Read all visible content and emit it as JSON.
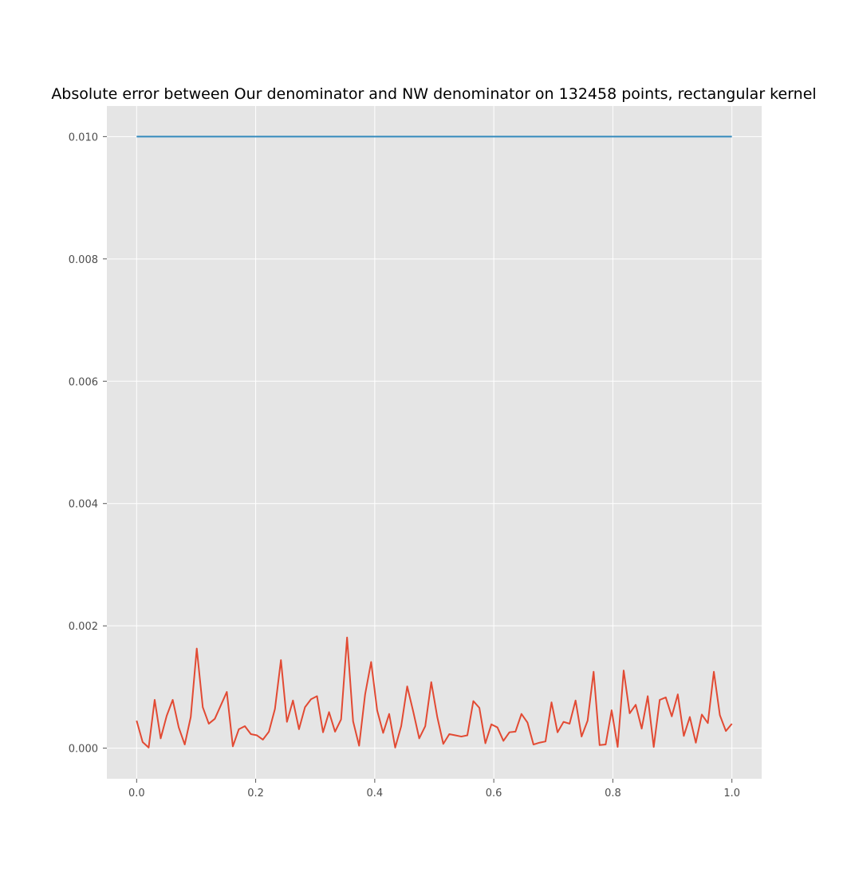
{
  "chart_data": {
    "type": "line",
    "title": "Absolute error between Our denominator and NW denominator on 132458 points, rectangular kernel",
    "xlabel": "",
    "ylabel": "",
    "xlim": [
      -0.05,
      1.05
    ],
    "ylim": [
      -0.0005,
      0.0105
    ],
    "x_ticks": [
      0.0,
      0.2,
      0.4,
      0.6,
      0.8,
      1.0
    ],
    "x_tick_labels": [
      "0.0",
      "0.2",
      "0.4",
      "0.6",
      "0.8",
      "1.0"
    ],
    "y_ticks": [
      0.0,
      0.002,
      0.004,
      0.006,
      0.008,
      0.01
    ],
    "y_tick_labels": [
      "0.000",
      "0.002",
      "0.004",
      "0.006",
      "0.008",
      "0.010"
    ],
    "grid": true,
    "style": {
      "plot_background": "#e5e5e5",
      "grid_color": "#ffffff",
      "tick_color": "#555555"
    },
    "series": [
      {
        "color": "#348abd",
        "x": [
          0.0,
          1.0
        ],
        "y": [
          0.01,
          0.01
        ]
      },
      {
        "color": "#e24a33",
        "x_start": 0.0,
        "x_end": 1.0,
        "y": [
          0.00045,
          0.0001,
          1e-05,
          0.00079,
          0.00016,
          0.00053,
          0.00079,
          0.00034,
          6e-05,
          0.00051,
          0.00163,
          0.00067,
          0.0004,
          0.00048,
          0.0007,
          0.00092,
          3e-05,
          0.00031,
          0.00036,
          0.00023,
          0.00021,
          0.00014,
          0.00027,
          0.00064,
          0.00144,
          0.00043,
          0.00078,
          0.00031,
          0.00067,
          0.0008,
          0.00085,
          0.00026,
          0.00059,
          0.00027,
          0.00047,
          0.00181,
          0.00044,
          4e-05,
          0.00088,
          0.00141,
          0.00062,
          0.00025,
          0.00056,
          1e-05,
          0.00036,
          0.00101,
          0.0006,
          0.00016,
          0.00036,
          0.00108,
          0.00051,
          7e-05,
          0.00023,
          0.00021,
          0.00019,
          0.00021,
          0.00077,
          0.00066,
          8e-05,
          0.00039,
          0.00034,
          0.00012,
          0.00026,
          0.00027,
          0.00056,
          0.00042,
          6e-05,
          9e-05,
          0.00011,
          0.00075,
          0.00026,
          0.00043,
          0.0004,
          0.00078,
          0.00019,
          0.00045,
          0.00125,
          5e-05,
          6e-05,
          0.00062,
          2e-05,
          0.00127,
          0.00057,
          0.00071,
          0.00032,
          0.00085,
          2e-05,
          0.00079,
          0.00083,
          0.00052,
          0.00088,
          0.0002,
          0.00051,
          9e-05,
          0.00055,
          0.00041,
          0.00125,
          0.00054,
          0.00028,
          0.0004
        ]
      }
    ]
  }
}
